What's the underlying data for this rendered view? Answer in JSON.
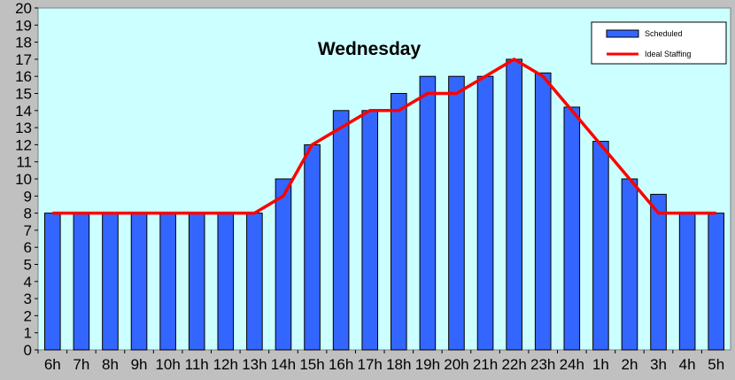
{
  "chart_data": {
    "type": "bar",
    "title": "Wednesday",
    "categories": [
      "6h",
      "7h",
      "8h",
      "9h",
      "10h",
      "11h",
      "12h",
      "13h",
      "14h",
      "15h",
      "16h",
      "17h",
      "18h",
      "19h",
      "20h",
      "21h",
      "22h",
      "23h",
      "24h",
      "1h",
      "2h",
      "3h",
      "4h",
      "5h"
    ],
    "series": [
      {
        "name": "Scheduled",
        "kind": "bar",
        "color": "#3366ff",
        "values": [
          8,
          8,
          8,
          8,
          8,
          8,
          8,
          8,
          10,
          12,
          14,
          14,
          15,
          16,
          16,
          16,
          17,
          16.2,
          14.2,
          12.2,
          10,
          9.1,
          8,
          8
        ]
      },
      {
        "name": "Ideal Staffing",
        "kind": "line",
        "color": "#ff0000",
        "values": [
          8,
          8,
          8,
          8,
          8,
          8,
          8,
          8,
          9,
          12,
          13,
          14,
          14,
          15,
          15,
          16,
          17,
          16,
          14,
          12,
          10,
          8,
          8,
          8
        ]
      }
    ],
    "ylim": [
      0,
      20
    ],
    "yticks": [
      "0",
      "1",
      "2",
      "3",
      "4",
      "5",
      "6",
      "7",
      "8",
      "9",
      "10",
      "11",
      "12",
      "13",
      "14",
      "15",
      "16",
      "17",
      "18",
      "19",
      "20"
    ],
    "xlabel": "",
    "ylabel": "",
    "legend_position": "top-right",
    "plot_background": "#ccffff",
    "outer_background": "#c0c0c0"
  }
}
